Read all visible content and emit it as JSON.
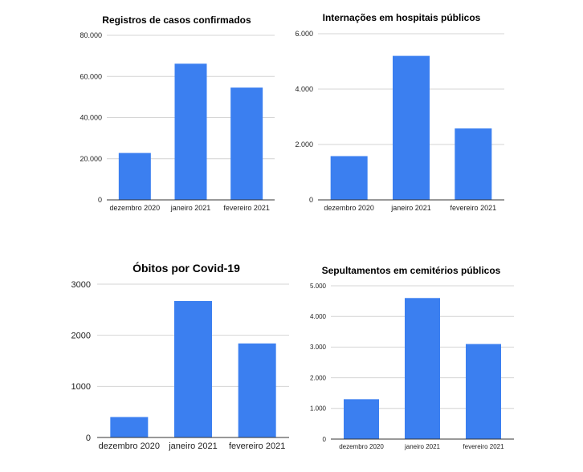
{
  "chart_data": [
    {
      "type": "bar",
      "title": "Registros de casos confirmados",
      "categories": [
        "dezembro 2020",
        "janeiro 2021",
        "fevereiro 2021"
      ],
      "values": [
        22800,
        66200,
        54600
      ],
      "ylim": [
        0,
        80000
      ],
      "yticks": [
        0,
        20000,
        40000,
        60000,
        80000
      ],
      "ytick_labels": [
        "0",
        "20.000",
        "40.000",
        "60.000",
        "80.000"
      ],
      "grid": true,
      "bar_color": "#3b7ff0"
    },
    {
      "type": "bar",
      "title": "Internações em hospitais públicos",
      "categories": [
        "dezembro 2020",
        "janeiro 2021",
        "fevereiro 2021"
      ],
      "values": [
        1580,
        5200,
        2580
      ],
      "ylim": [
        0,
        6000
      ],
      "yticks": [
        0,
        2000,
        4000,
        6000
      ],
      "ytick_labels": [
        "0",
        "2.000",
        "4.000",
        "6.000"
      ],
      "grid": true,
      "bar_color": "#3b7ff0"
    },
    {
      "type": "bar",
      "title": "Óbitos por Covid-19",
      "categories": [
        "dezembro 2020",
        "janeiro 2021",
        "fevereiro 2021"
      ],
      "values": [
        400,
        2670,
        1840
      ],
      "ylim": [
        0,
        3000
      ],
      "yticks": [
        0,
        1000,
        2000,
        3000
      ],
      "ytick_labels": [
        "0",
        "1000",
        "2000",
        "3000"
      ],
      "grid": true,
      "bar_color": "#3b7ff0"
    },
    {
      "type": "bar",
      "title": "Sepultamentos em cemitérios públicos",
      "categories": [
        "dezembro 2020",
        "janeiro 2021",
        "fevereiro 2021"
      ],
      "values": [
        1300,
        4600,
        3100
      ],
      "ylim": [
        0,
        5000
      ],
      "yticks": [
        0,
        1000,
        2000,
        3000,
        4000,
        5000
      ],
      "ytick_labels": [
        "0",
        "1.000",
        "2.000",
        "3.000",
        "4.000",
        "5.000"
      ],
      "grid": true,
      "bar_color": "#3b7ff0"
    }
  ]
}
